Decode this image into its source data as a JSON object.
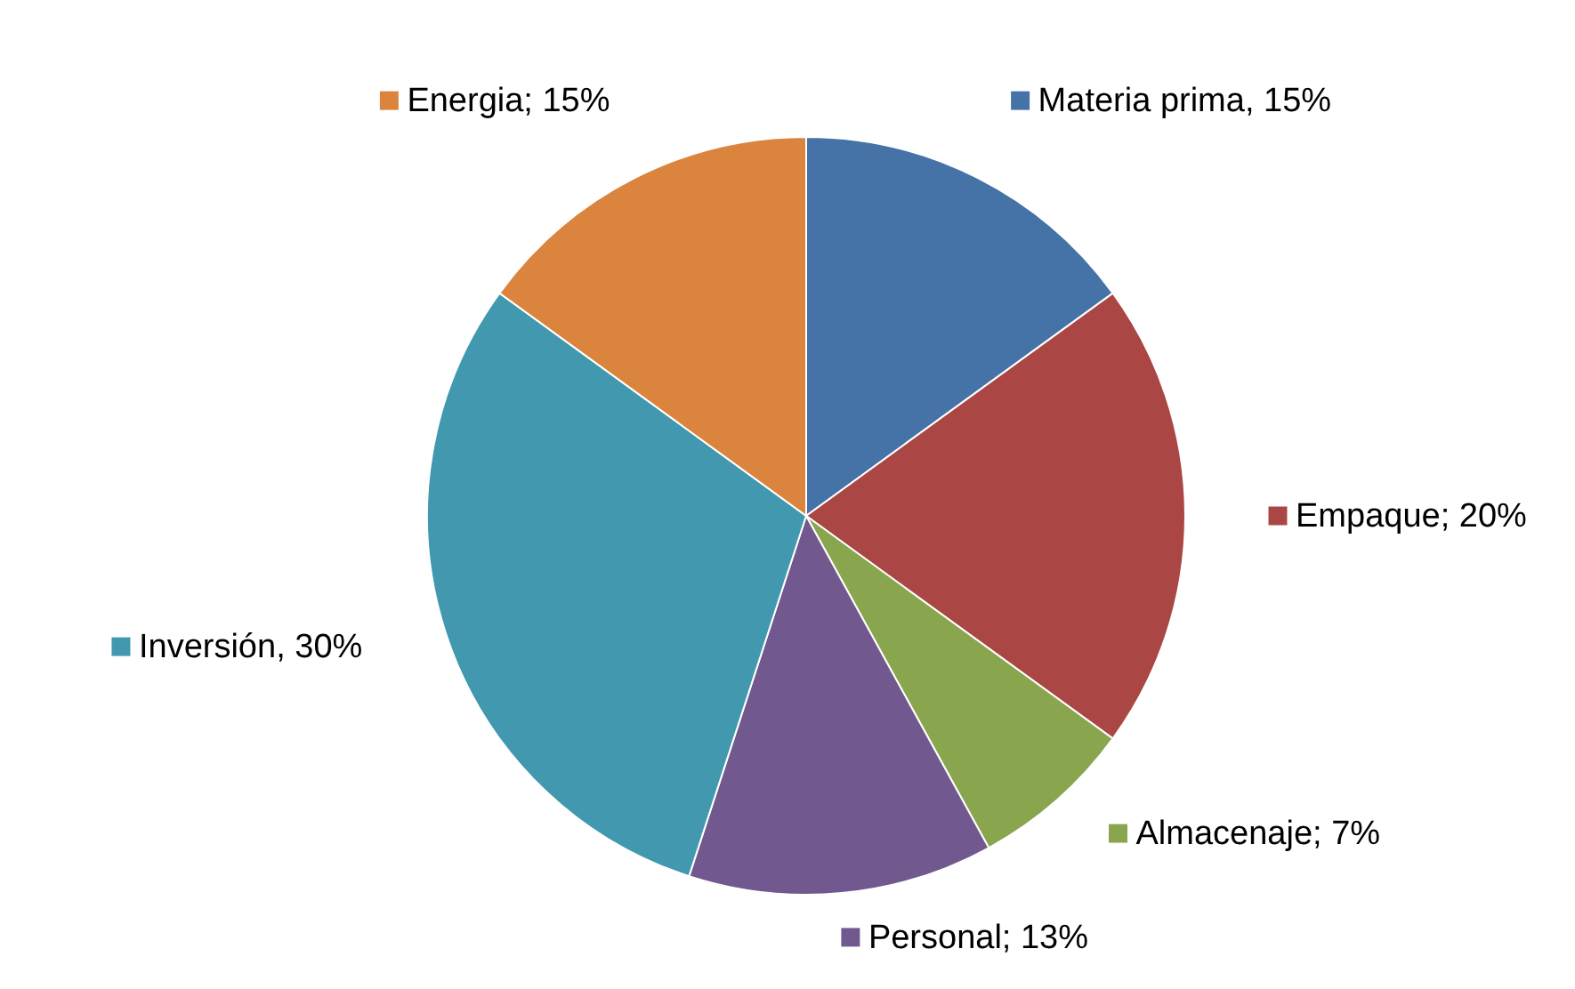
{
  "chart_data": {
    "type": "pie",
    "categories": [
      "Materia prima",
      "Empaque",
      "Almacenaje",
      "Personal",
      "Inversión",
      "Energia"
    ],
    "values": [
      15,
      20,
      7,
      13,
      30,
      15
    ],
    "colors": [
      "#4572a7",
      "#aa4643",
      "#89a54e",
      "#71588f",
      "#4198af",
      "#db843d"
    ],
    "value_labels": [
      ", 15%",
      "; 20%",
      "; 7%",
      "; 13%",
      ", 30%",
      "; 15%"
    ],
    "data_labels": true,
    "legend": "right"
  }
}
